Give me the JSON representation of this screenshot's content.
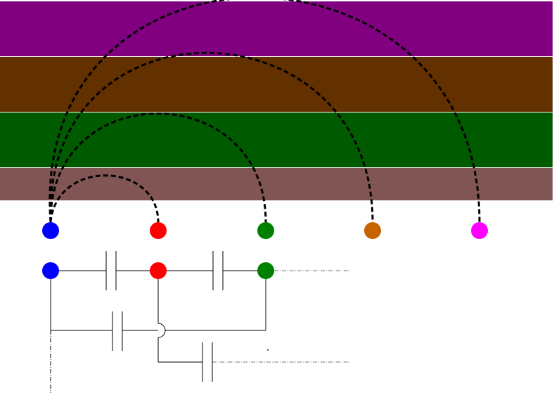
{
  "bands": [
    {
      "id": "band-1",
      "color": "#800080"
    },
    {
      "id": "band-2",
      "color": "#633100"
    },
    {
      "id": "band-3",
      "color": "#005a00"
    },
    {
      "id": "band-4",
      "color": "#825555"
    }
  ],
  "top_nodes": [
    {
      "id": "node-a",
      "color": "#0000ff"
    },
    {
      "id": "node-b",
      "color": "#ff0000"
    },
    {
      "id": "node-c",
      "color": "#008000"
    },
    {
      "id": "node-d",
      "color": "#c86400"
    },
    {
      "id": "node-e",
      "color": "#ff00ff"
    }
  ],
  "arcs": [
    {
      "from": "node-a",
      "to": "node-b"
    },
    {
      "from": "node-a",
      "to": "node-c"
    },
    {
      "from": "node-a",
      "to": "node-d"
    },
    {
      "from": "node-a",
      "to": "node-e"
    }
  ],
  "circuit_nodes": [
    {
      "id": "circuit-node-a",
      "color": "#0000ff"
    },
    {
      "id": "circuit-node-b",
      "color": "#ff0000"
    },
    {
      "id": "circuit-node-c",
      "color": "#008000"
    }
  ],
  "capacitors": [
    {
      "id": "capacitor-ab",
      "between": [
        "circuit-node-a",
        "circuit-node-b"
      ]
    },
    {
      "id": "capacitor-bc",
      "between": [
        "circuit-node-b",
        "circuit-node-c"
      ]
    },
    {
      "id": "capacitor-ac",
      "between": [
        "circuit-node-a",
        "circuit-node-c"
      ]
    },
    {
      "id": "capacitor-b-out",
      "between": [
        "circuit-node-b",
        "output"
      ]
    }
  ]
}
